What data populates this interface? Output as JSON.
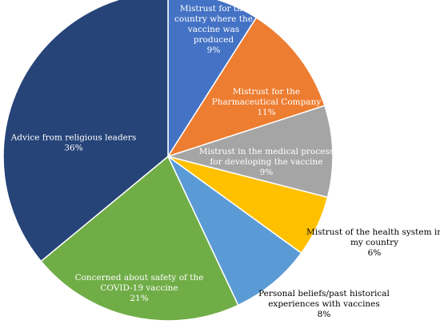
{
  "chart_data": {
    "type": "pie",
    "title": "",
    "start_angle_deg": 0,
    "direction": "clockwise",
    "slices": [
      {
        "label_lines": [
          "Mistrust for the",
          "country where the",
          "vaccine was",
          "produced"
        ],
        "pct_text": "9%",
        "value": 9,
        "color": "#4472c4",
        "label_color": "#ffffff",
        "label_pos": "inside"
      },
      {
        "label_lines": [
          "Mistrust for the",
          "Pharmaceutical Company"
        ],
        "pct_text": "11%",
        "value": 11,
        "color": "#ed7d31",
        "label_color": "#ffffff",
        "label_pos": "inside"
      },
      {
        "label_lines": [
          "Mistrust in the medical process",
          "for developing the vaccine"
        ],
        "pct_text": "9%",
        "value": 9,
        "color": "#a5a5a5",
        "label_color": "#ffffff",
        "label_pos": "inside"
      },
      {
        "label_lines": [
          "Mistrust of the health system in",
          "my country"
        ],
        "pct_text": "6%",
        "value": 6,
        "color": "#ffc000",
        "label_color": "#000000",
        "label_pos": "outside"
      },
      {
        "label_lines": [
          "Personal beliefs/past historical",
          "experiences with vaccines"
        ],
        "pct_text": "8%",
        "value": 8,
        "color": "#5b9bd5",
        "label_color": "#000000",
        "label_pos": "outside"
      },
      {
        "label_lines": [
          "Concerned about safety of the",
          "COVID-19 vaccine"
        ],
        "pct_text": "21%",
        "value": 21,
        "color": "#70ad47",
        "label_color": "#ffffff",
        "label_pos": "inside"
      },
      {
        "label_lines": [
          "Advice from religious leaders"
        ],
        "pct_text": "36%",
        "value": 36,
        "color": "#264478",
        "label_color": "#ffffff",
        "label_pos": "inside"
      }
    ]
  }
}
